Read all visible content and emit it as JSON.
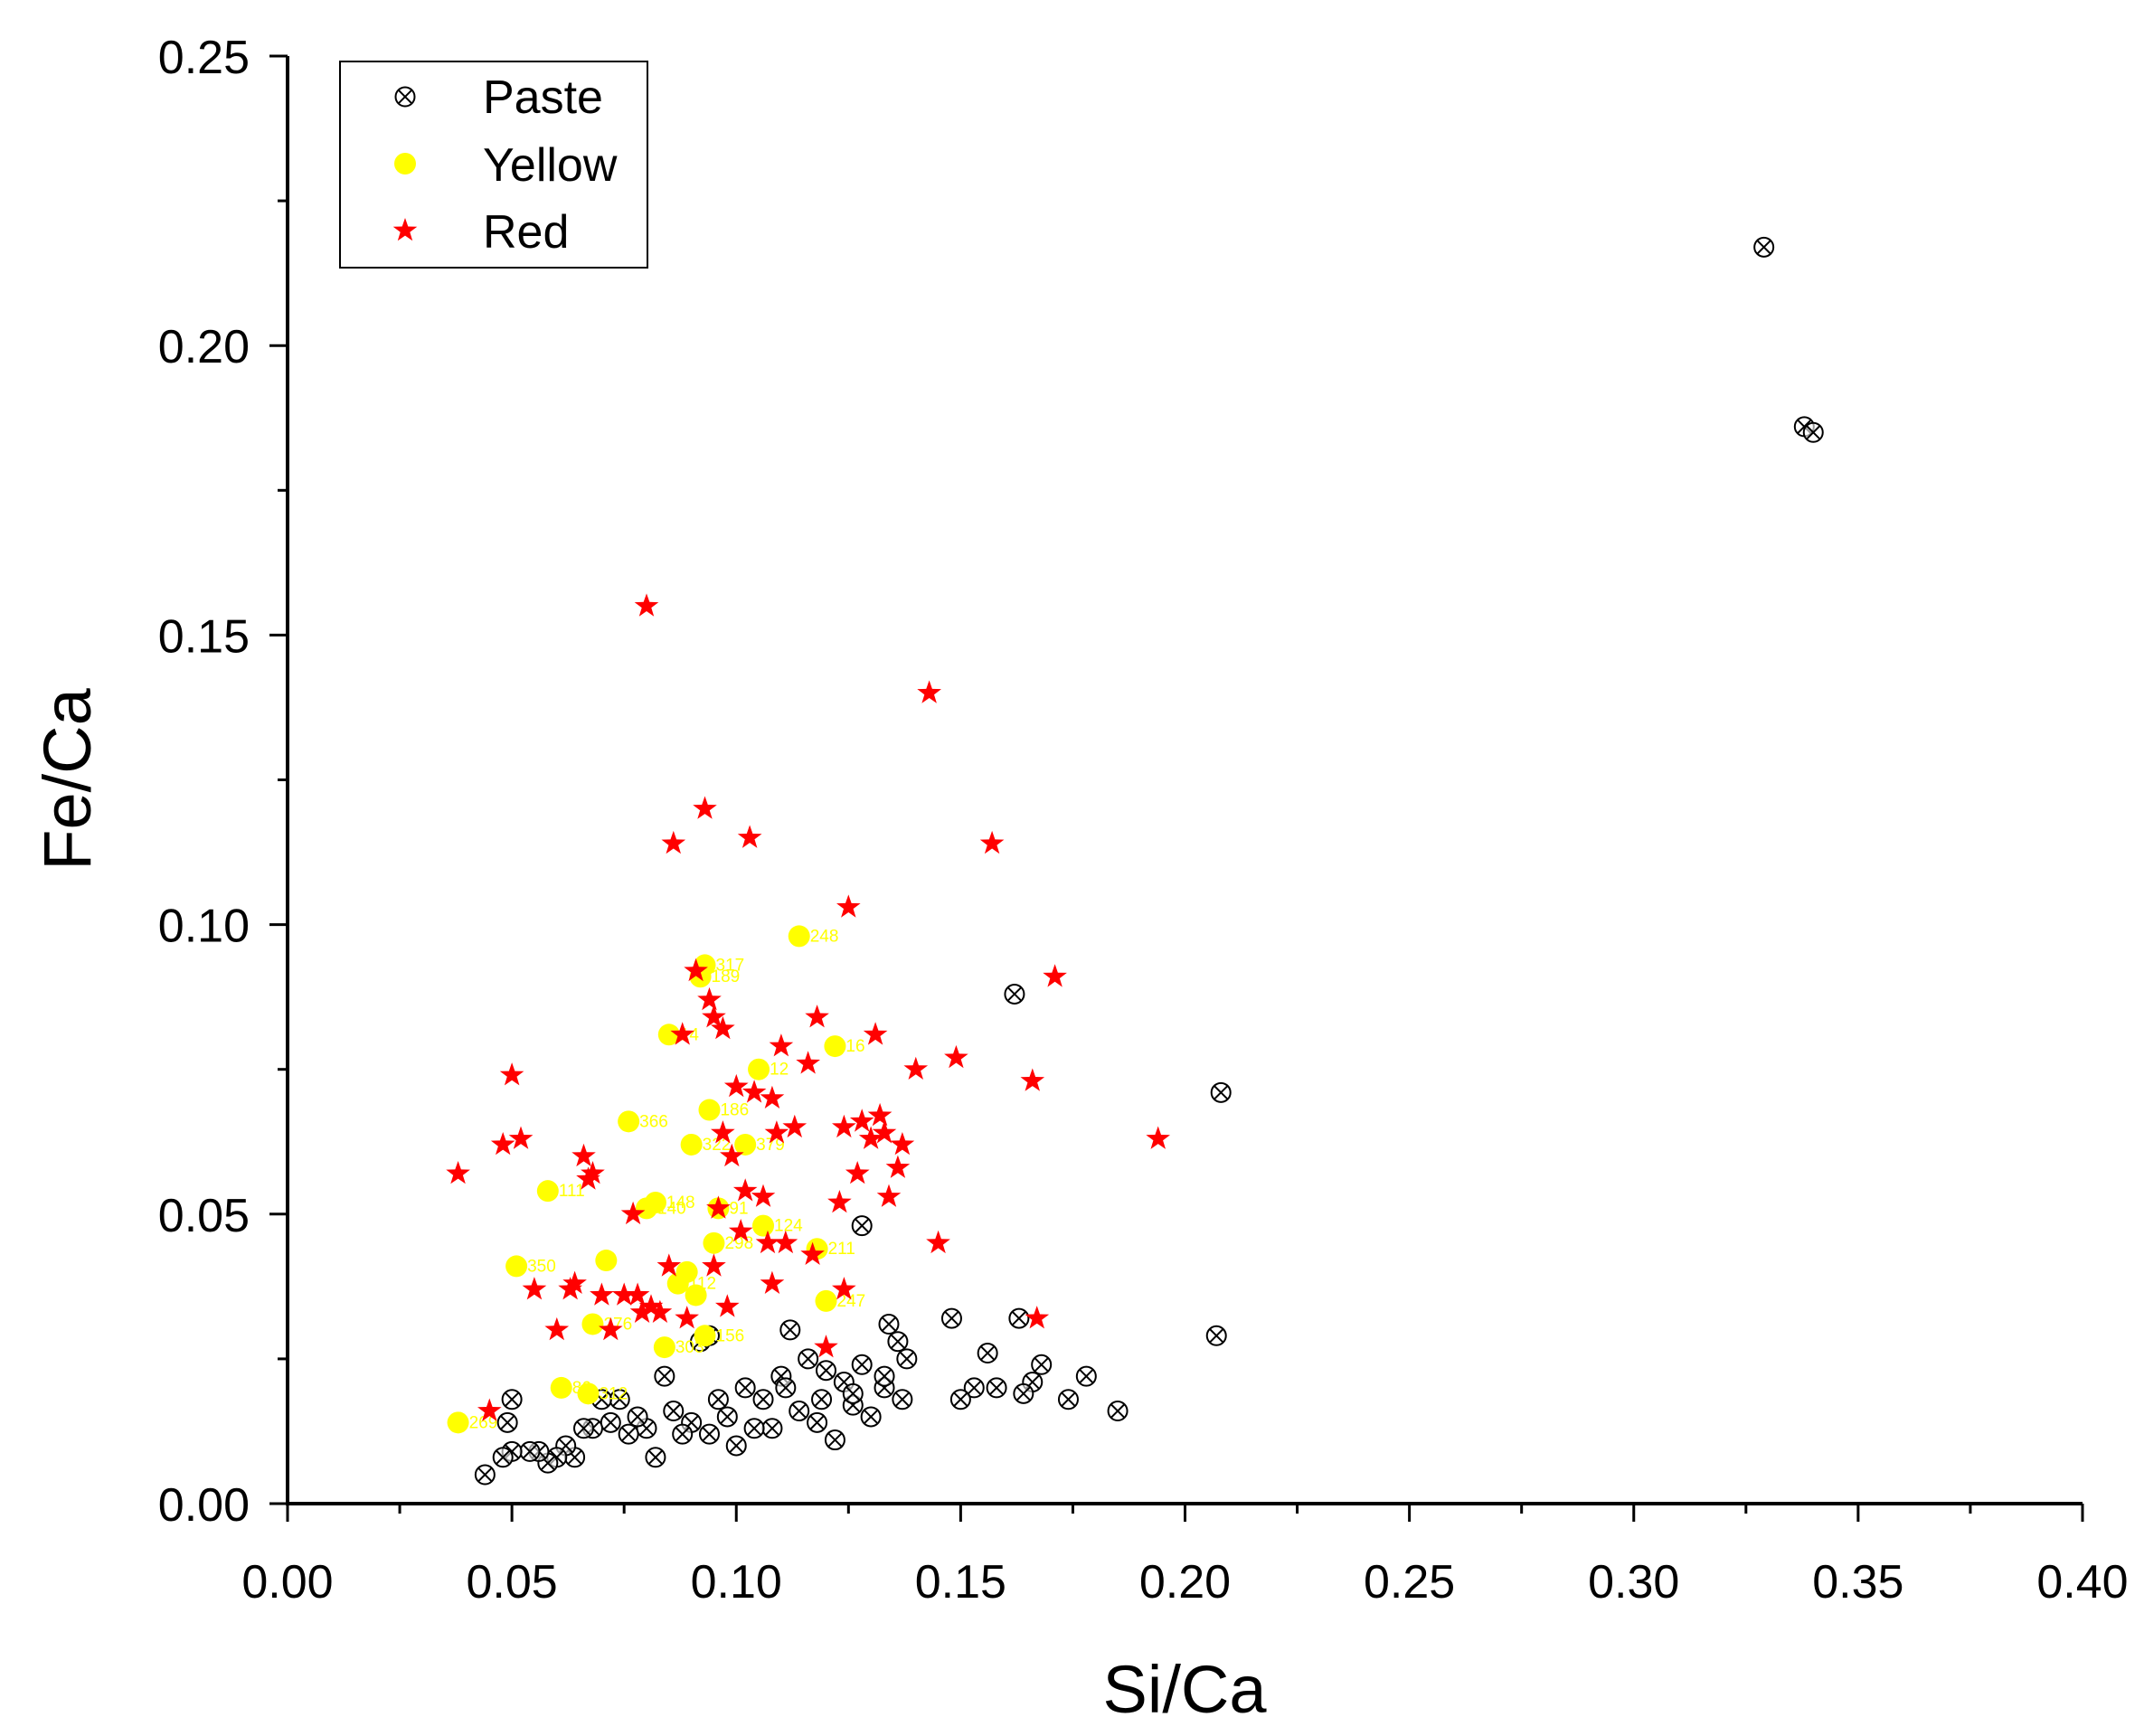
{
  "chart_data": {
    "type": "scatter",
    "title": "",
    "xlabel": "Si/Ca",
    "ylabel": "Fe/Ca",
    "xlim": [
      0,
      0.4
    ],
    "ylim": [
      0,
      0.25
    ],
    "x_ticks": [
      "0.00",
      "0.05",
      "0.10",
      "0.15",
      "0.20",
      "0.25",
      "0.30",
      "0.35",
      "0.40"
    ],
    "y_ticks": [
      "0.00",
      "0.05",
      "0.10",
      "0.15",
      "0.20",
      "0.25"
    ],
    "legend_position": "top-left",
    "grid": false,
    "series": [
      {
        "name": "Paste",
        "marker": "circle-x",
        "color": "#000000",
        "points": [
          [
            0.329,
            0.217
          ],
          [
            0.338,
            0.186
          ],
          [
            0.34,
            0.185
          ],
          [
            0.208,
            0.071
          ],
          [
            0.162,
            0.088
          ],
          [
            0.207,
            0.029
          ],
          [
            0.185,
            0.016
          ],
          [
            0.178,
            0.022
          ],
          [
            0.174,
            0.018
          ],
          [
            0.168,
            0.024
          ],
          [
            0.166,
            0.021
          ],
          [
            0.163,
            0.032
          ],
          [
            0.158,
            0.02
          ],
          [
            0.156,
            0.026
          ],
          [
            0.153,
            0.02
          ],
          [
            0.15,
            0.018
          ],
          [
            0.148,
            0.032
          ],
          [
            0.138,
            0.025
          ],
          [
            0.137,
            0.018
          ],
          [
            0.136,
            0.028
          ],
          [
            0.134,
            0.031
          ],
          [
            0.133,
            0.02
          ],
          [
            0.13,
            0.015
          ],
          [
            0.128,
            0.048
          ],
          [
            0.128,
            0.024
          ],
          [
            0.126,
            0.017
          ],
          [
            0.124,
            0.021
          ],
          [
            0.122,
            0.011
          ],
          [
            0.12,
            0.023
          ],
          [
            0.118,
            0.014
          ],
          [
            0.116,
            0.025
          ],
          [
            0.114,
            0.016
          ],
          [
            0.112,
            0.03
          ],
          [
            0.11,
            0.022
          ],
          [
            0.108,
            0.013
          ],
          [
            0.106,
            0.018
          ],
          [
            0.104,
            0.013
          ],
          [
            0.102,
            0.02
          ],
          [
            0.1,
            0.01
          ],
          [
            0.098,
            0.015
          ],
          [
            0.096,
            0.018
          ],
          [
            0.094,
            0.012
          ],
          [
            0.094,
            0.029
          ],
          [
            0.092,
            0.028
          ],
          [
            0.09,
            0.014
          ],
          [
            0.088,
            0.012
          ],
          [
            0.086,
            0.016
          ],
          [
            0.084,
            0.022
          ],
          [
            0.082,
            0.008
          ],
          [
            0.08,
            0.013
          ],
          [
            0.078,
            0.015
          ],
          [
            0.076,
            0.012
          ],
          [
            0.074,
            0.018
          ],
          [
            0.072,
            0.014
          ],
          [
            0.07,
            0.018
          ],
          [
            0.068,
            0.013
          ],
          [
            0.066,
            0.013
          ],
          [
            0.064,
            0.008
          ],
          [
            0.062,
            0.01
          ],
          [
            0.06,
            0.008
          ],
          [
            0.058,
            0.007
          ],
          [
            0.056,
            0.009
          ],
          [
            0.054,
            0.009
          ],
          [
            0.05,
            0.018
          ],
          [
            0.05,
            0.009
          ],
          [
            0.049,
            0.014
          ],
          [
            0.048,
            0.008
          ],
          [
            0.044,
            0.005
          ],
          [
            0.111,
            0.02
          ],
          [
            0.119,
            0.018
          ],
          [
            0.126,
            0.019
          ],
          [
            0.133,
            0.022
          ],
          [
            0.164,
            0.019
          ]
        ]
      },
      {
        "name": "Yellow",
        "marker": "circle",
        "color": "#FFFF00",
        "points": [
          [
            0.038,
            0.014,
            "269"
          ],
          [
            0.051,
            0.041,
            "350"
          ],
          [
            0.058,
            0.054,
            "111"
          ],
          [
            0.061,
            0.02,
            "86"
          ],
          [
            0.067,
            0.019,
            "312"
          ],
          [
            0.068,
            0.031,
            "276"
          ],
          [
            0.071,
            0.042,
            ""
          ],
          [
            0.076,
            0.066,
            "366"
          ],
          [
            0.08,
            0.051,
            "140"
          ],
          [
            0.082,
            0.052,
            "148"
          ],
          [
            0.084,
            0.027,
            "303"
          ],
          [
            0.085,
            0.081,
            "14"
          ],
          [
            0.087,
            0.038,
            "112"
          ],
          [
            0.089,
            0.04,
            ""
          ],
          [
            0.09,
            0.062,
            "322"
          ],
          [
            0.091,
            0.036,
            ""
          ],
          [
            0.092,
            0.091,
            "189"
          ],
          [
            0.093,
            0.093,
            "317"
          ],
          [
            0.093,
            0.029,
            "156"
          ],
          [
            0.094,
            0.068,
            "186"
          ],
          [
            0.095,
            0.045,
            "298"
          ],
          [
            0.096,
            0.051,
            "91"
          ],
          [
            0.102,
            0.062,
            "379"
          ],
          [
            0.105,
            0.075,
            "12"
          ],
          [
            0.106,
            0.048,
            "124"
          ],
          [
            0.114,
            0.098,
            "248"
          ],
          [
            0.118,
            0.044,
            "211"
          ],
          [
            0.12,
            0.035,
            "247"
          ],
          [
            0.122,
            0.079,
            "16"
          ]
        ]
      },
      {
        "name": "Red",
        "marker": "star",
        "color": "#FF0000",
        "points": [
          [
            0.038,
            0.057
          ],
          [
            0.045,
            0.016
          ],
          [
            0.048,
            0.062
          ],
          [
            0.05,
            0.074
          ],
          [
            0.052,
            0.063
          ],
          [
            0.055,
            0.037
          ],
          [
            0.06,
            0.03
          ],
          [
            0.063,
            0.037
          ],
          [
            0.064,
            0.038
          ],
          [
            0.066,
            0.06
          ],
          [
            0.067,
            0.056
          ],
          [
            0.068,
            0.057
          ],
          [
            0.07,
            0.036
          ],
          [
            0.072,
            0.03
          ],
          [
            0.075,
            0.036
          ],
          [
            0.077,
            0.05
          ],
          [
            0.078,
            0.036
          ],
          [
            0.079,
            0.033
          ],
          [
            0.08,
            0.155
          ],
          [
            0.081,
            0.034
          ],
          [
            0.083,
            0.033
          ],
          [
            0.085,
            0.041
          ],
          [
            0.086,
            0.114
          ],
          [
            0.088,
            0.081
          ],
          [
            0.089,
            0.032
          ],
          [
            0.091,
            0.092
          ],
          [
            0.093,
            0.12
          ],
          [
            0.094,
            0.087
          ],
          [
            0.095,
            0.084
          ],
          [
            0.095,
            0.041
          ],
          [
            0.096,
            0.051
          ],
          [
            0.097,
            0.064
          ],
          [
            0.097,
            0.082
          ],
          [
            0.098,
            0.034
          ],
          [
            0.099,
            0.06
          ],
          [
            0.1,
            0.072
          ],
          [
            0.101,
            0.047
          ],
          [
            0.102,
            0.054
          ],
          [
            0.103,
            0.115
          ],
          [
            0.104,
            0.071
          ],
          [
            0.106,
            0.053
          ],
          [
            0.107,
            0.045
          ],
          [
            0.108,
            0.07
          ],
          [
            0.108,
            0.038
          ],
          [
            0.109,
            0.064
          ],
          [
            0.11,
            0.079
          ],
          [
            0.111,
            0.045
          ],
          [
            0.113,
            0.065
          ],
          [
            0.116,
            0.076
          ],
          [
            0.117,
            0.043
          ],
          [
            0.118,
            0.084
          ],
          [
            0.12,
            0.027
          ],
          [
            0.123,
            0.052
          ],
          [
            0.124,
            0.065
          ],
          [
            0.124,
            0.037
          ],
          [
            0.125,
            0.103
          ],
          [
            0.127,
            0.057
          ],
          [
            0.128,
            0.066
          ],
          [
            0.13,
            0.063
          ],
          [
            0.131,
            0.081
          ],
          [
            0.132,
            0.067
          ],
          [
            0.133,
            0.064
          ],
          [
            0.134,
            0.053
          ],
          [
            0.136,
            0.058
          ],
          [
            0.137,
            0.062
          ],
          [
            0.14,
            0.075
          ],
          [
            0.143,
            0.14
          ],
          [
            0.145,
            0.045
          ],
          [
            0.149,
            0.077
          ],
          [
            0.157,
            0.114
          ],
          [
            0.166,
            0.073
          ],
          [
            0.167,
            0.032
          ],
          [
            0.171,
            0.091
          ],
          [
            0.194,
            0.063
          ]
        ]
      }
    ]
  }
}
